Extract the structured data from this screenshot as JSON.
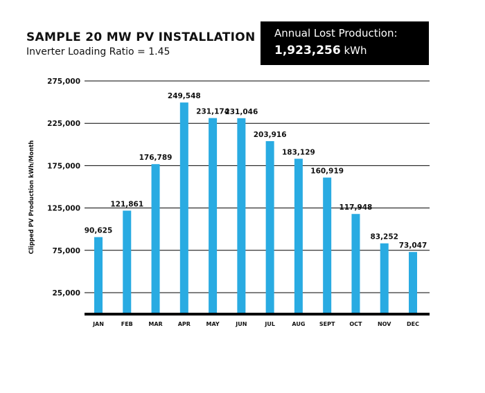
{
  "header": {
    "title": "SAMPLE 20 MW PV INSTALLATION",
    "subtitle": "Inverter Loading Ratio = 1.45"
  },
  "callout": {
    "label": "Annual Lost Production:",
    "value": "1,923,256",
    "unit": "kWh"
  },
  "colors": {
    "bar": "#29abe2",
    "axis": "#000000",
    "grid": "#000000",
    "callout_bg": "#000000"
  },
  "chart_data": {
    "type": "bar",
    "title": "SAMPLE 20 MW PV INSTALLATION",
    "subtitle": "Inverter Loading Ratio = 1.45",
    "xlabel": "",
    "ylabel": "Clipped PV Production kWh/Month",
    "categories": [
      "JAN",
      "FEB",
      "MAR",
      "APR",
      "MAY",
      "JUN",
      "JUL",
      "AUG",
      "SEPT",
      "OCT",
      "NOV",
      "DEC"
    ],
    "values": [
      90625,
      121861,
      176789,
      249548,
      231174,
      231046,
      203916,
      183129,
      160919,
      117948,
      83252,
      73047
    ],
    "value_labels": [
      "90,625",
      "121,861",
      "176,789",
      "249,548",
      "231,174",
      "231,046",
      "203,916",
      "183,129",
      "160,919",
      "117,948",
      "83,252",
      "73,047"
    ],
    "yticks": [
      25000,
      75000,
      125000,
      175000,
      225000,
      275000
    ],
    "ytick_labels": [
      "25,000",
      "75,000",
      "125,000",
      "175,000",
      "225,000",
      "275,000"
    ],
    "ylim": [
      0,
      275000
    ],
    "grid": true,
    "legend": "none"
  }
}
